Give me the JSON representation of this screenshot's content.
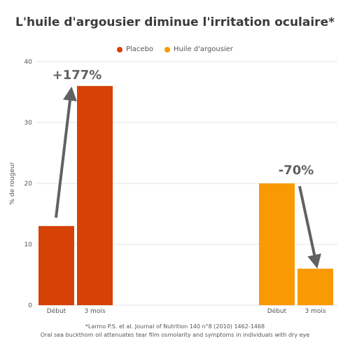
{
  "chart_data": {
    "type": "bar",
    "title": "L'huile d'argousier diminue l'irritation oculaire*",
    "ylabel": "% de rougeur",
    "ylim": [
      0,
      40
    ],
    "yticks": [
      0,
      10,
      20,
      30,
      40
    ],
    "grid": true,
    "legend_position": "top-center",
    "groups": [
      {
        "name": "Placebo",
        "color": "#d64206",
        "categories": [
          "Début",
          "3 mois"
        ],
        "values": [
          13,
          36
        ],
        "change_label": "+177%"
      },
      {
        "name": "Huile d'argousier",
        "color": "#f99a05",
        "categories": [
          "Début",
          "3 mois"
        ],
        "values": [
          20,
          6
        ],
        "change_label": "-70%"
      }
    ]
  },
  "footnote": {
    "line1": "*Larmo P.S. et al. Journal of Nutrition 140 n°8 (2010) 1462-1468",
    "line2": "Oral sea buckthom oil attenuates tear film osmolarity and symptoms in individuals with dry eye"
  },
  "colors": {
    "arrow": "#616161",
    "annotation": "#616161",
    "grid": "#e3e3e3"
  }
}
